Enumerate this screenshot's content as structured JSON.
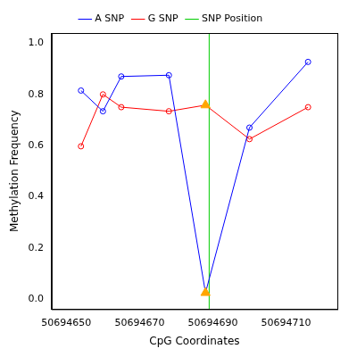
{
  "chart_data": {
    "type": "line",
    "x_label": "CpG Coordinates",
    "y_label": "Methylation Frequency",
    "x": [
      50694654,
      50694660,
      50694665,
      50694678,
      50694688,
      50694700,
      50694716
    ],
    "series": [
      {
        "name": "A SNP",
        "color": "#0000ff",
        "marker": "circle",
        "values": [
          0.815,
          0.734,
          0.87,
          0.875,
          0.024,
          0.67,
          0.927
        ]
      },
      {
        "name": "G SNP",
        "color": "#ff0000",
        "marker": "circle",
        "values": [
          0.597,
          0.8,
          0.75,
          0.734,
          0.758,
          0.625,
          0.75
        ]
      }
    ],
    "snp_position": {
      "name": "SNP Position",
      "color": "#00cc00",
      "x": 50694689
    },
    "highlight": {
      "x": 50694688,
      "color": "#ffa500",
      "marker": "triangle"
    },
    "xlim": [
      50694646,
      50694724
    ],
    "xticks": [
      50694650,
      50694670,
      50694690,
      50694710
    ],
    "ylim": [
      -0.04,
      1.04
    ],
    "yticks": [
      {
        "value": 0,
        "label": "0.0"
      },
      0.2,
      0.4,
      0.6,
      0.8,
      {
        "value": 1,
        "label": "1.0"
      }
    ],
    "grid": false,
    "legend": "top"
  }
}
